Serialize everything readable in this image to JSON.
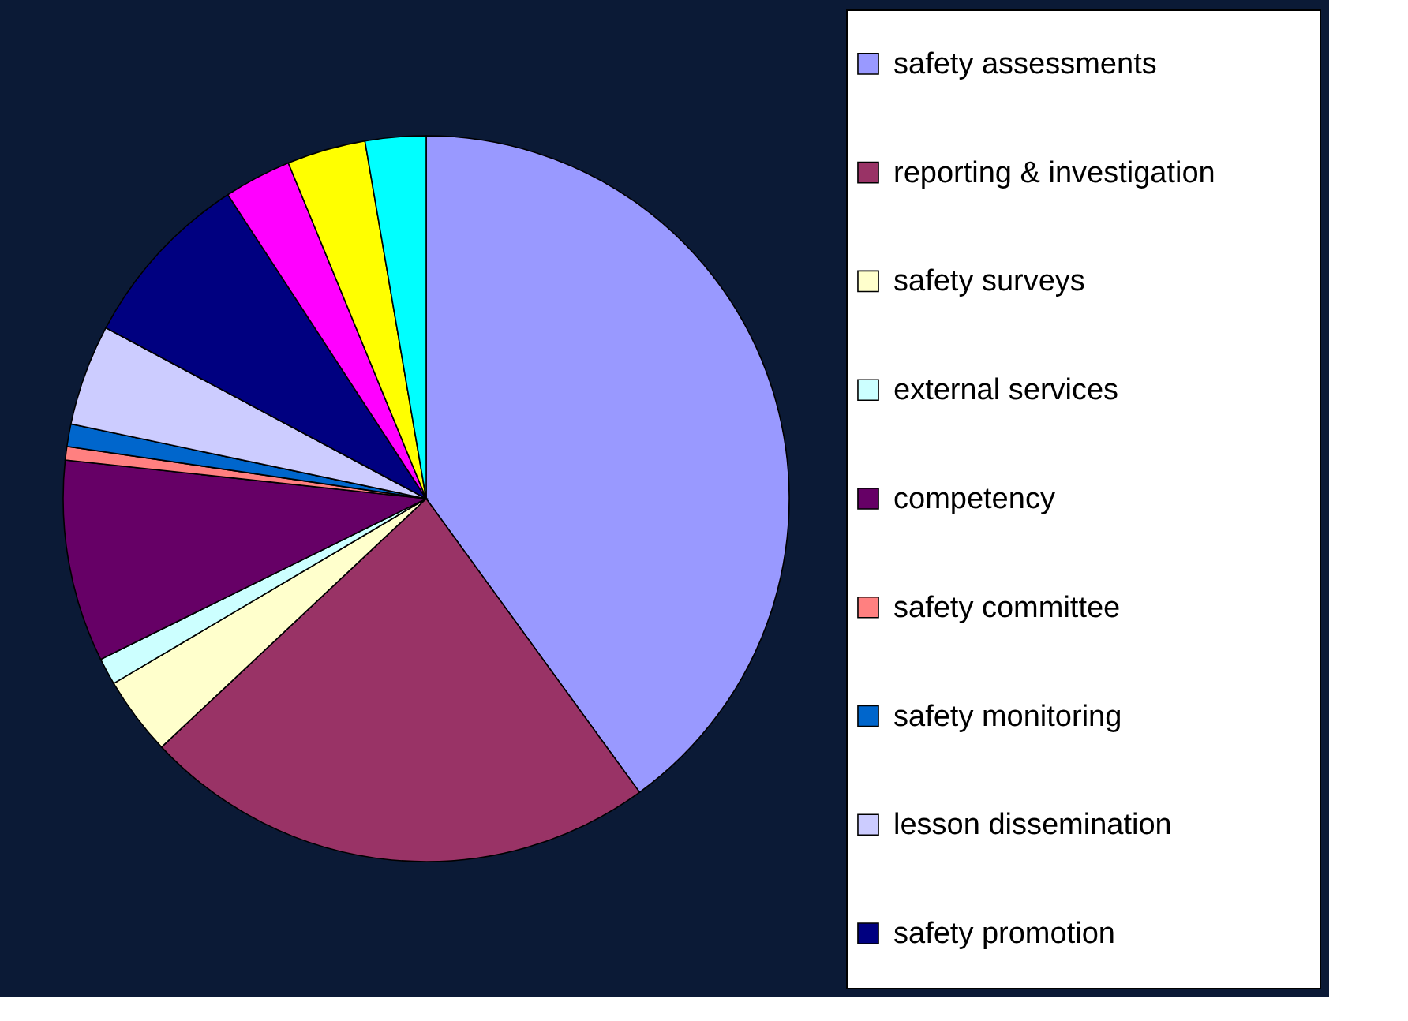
{
  "chart_data": {
    "type": "pie",
    "categories": [
      "safety assessments",
      "reporting & investigation",
      "safety surveys",
      "external services",
      "competency",
      "safety committee",
      "safety monitoring",
      "lesson dissemination",
      "safety promotion",
      null,
      null,
      null
    ],
    "values": [
      40,
      23,
      3.5,
      1.2,
      9,
      0.6,
      1,
      4.5,
      8,
      3,
      3.5,
      2.7
    ],
    "colors": [
      "#9999ff",
      "#993366",
      "#ffffcc",
      "#ccffff",
      "#660066",
      "#ff8080",
      "#0066cc",
      "#ccccff",
      "#000080",
      "#ff00ff",
      "#ffff00",
      "#00ffff"
    ],
    "legend": "right"
  }
}
